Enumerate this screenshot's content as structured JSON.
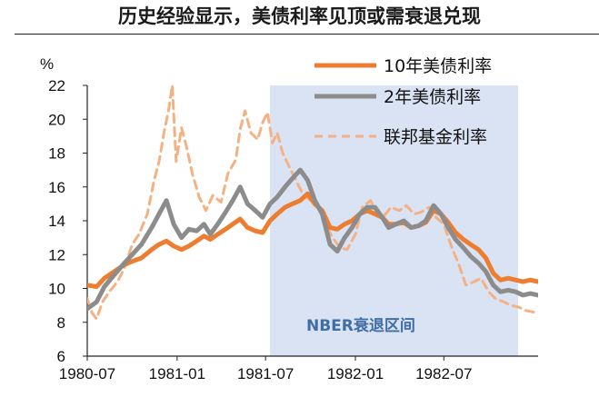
{
  "title": "历史经验显示，美债利率见顶或需衰退兑现",
  "colors": {
    "ten_year": "#ed7d31",
    "two_year": "#8c8c8c",
    "fed_funds": "#f4b183",
    "recession_shade": "#dae3f3",
    "nber_label": "#3f6ea6"
  },
  "chart_data": {
    "type": "line",
    "ylabel": "%",
    "ylim": [
      6,
      22
    ],
    "yticks": [
      6,
      8,
      10,
      12,
      14,
      16,
      18,
      20,
      22
    ],
    "xlim": [
      "1980-07-01",
      "1983-01-10"
    ],
    "xticks": [
      {
        "date": "1980-07-01",
        "label": "1980-07"
      },
      {
        "date": "1981-01-01",
        "label": "1981-01"
      },
      {
        "date": "1981-07-01",
        "label": "1981-07"
      },
      {
        "date": "1982-01-01",
        "label": "1982-01"
      },
      {
        "date": "1982-07-01",
        "label": "1982-07"
      }
    ],
    "legend_position": "top-right",
    "shaded_regions": [
      {
        "label": "NBER衰退区间",
        "start": "1981-07-10",
        "end": "1982-11-30"
      }
    ],
    "series": [
      {
        "name": "10年美债利率",
        "style": "solid-thick",
        "points": [
          [
            "1980-07-01",
            10.2
          ],
          [
            "1980-07-20",
            10.1
          ],
          [
            "1980-08-05",
            10.6
          ],
          [
            "1980-08-25",
            11.0
          ],
          [
            "1980-09-15",
            11.4
          ],
          [
            "1980-10-01",
            11.6
          ],
          [
            "1980-10-20",
            11.8
          ],
          [
            "1980-11-10",
            12.3
          ],
          [
            "1980-11-25",
            12.6
          ],
          [
            "1980-12-10",
            12.8
          ],
          [
            "1980-12-25",
            12.5
          ],
          [
            "1981-01-10",
            12.3
          ],
          [
            "1981-01-25",
            12.5
          ],
          [
            "1981-02-10",
            12.8
          ],
          [
            "1981-02-25",
            13.1
          ],
          [
            "1981-03-10",
            12.9
          ],
          [
            "1981-03-25",
            13.2
          ],
          [
            "1981-04-10",
            13.5
          ],
          [
            "1981-04-25",
            13.8
          ],
          [
            "1981-05-10",
            14.1
          ],
          [
            "1981-05-25",
            13.6
          ],
          [
            "1981-06-10",
            13.4
          ],
          [
            "1981-06-25",
            13.3
          ],
          [
            "1981-07-10",
            14.0
          ],
          [
            "1981-07-25",
            14.4
          ],
          [
            "1981-08-10",
            14.8
          ],
          [
            "1981-08-25",
            15.0
          ],
          [
            "1981-09-10",
            15.2
          ],
          [
            "1981-09-25",
            15.6
          ],
          [
            "1981-10-10",
            15.0
          ],
          [
            "1981-10-25",
            14.6
          ],
          [
            "1981-11-10",
            13.6
          ],
          [
            "1981-11-25",
            13.5
          ],
          [
            "1981-12-10",
            13.8
          ],
          [
            "1981-12-25",
            14.0
          ],
          [
            "1982-01-10",
            14.4
          ],
          [
            "1982-01-25",
            14.6
          ],
          [
            "1982-02-10",
            14.4
          ],
          [
            "1982-02-25",
            14.2
          ],
          [
            "1982-03-10",
            13.8
          ],
          [
            "1982-03-25",
            13.8
          ],
          [
            "1982-04-10",
            13.9
          ],
          [
            "1982-04-25",
            13.6
          ],
          [
            "1982-05-10",
            13.7
          ],
          [
            "1982-05-25",
            13.9
          ],
          [
            "1982-06-10",
            14.6
          ],
          [
            "1982-06-25",
            14.4
          ],
          [
            "1982-07-10",
            13.9
          ],
          [
            "1982-07-25",
            13.3
          ],
          [
            "1982-08-10",
            12.9
          ],
          [
            "1982-08-25",
            12.6
          ],
          [
            "1982-09-10",
            12.3
          ],
          [
            "1982-09-25",
            11.8
          ],
          [
            "1982-10-10",
            10.9
          ],
          [
            "1982-10-25",
            10.5
          ],
          [
            "1982-11-10",
            10.6
          ],
          [
            "1982-11-25",
            10.5
          ],
          [
            "1982-12-10",
            10.4
          ],
          [
            "1982-12-25",
            10.5
          ],
          [
            "1983-01-10",
            10.4
          ]
        ]
      },
      {
        "name": "2年美债利率",
        "style": "solid-thick",
        "points": [
          [
            "1980-07-01",
            8.8
          ],
          [
            "1980-07-20",
            9.2
          ],
          [
            "1980-08-05",
            10.1
          ],
          [
            "1980-08-25",
            10.8
          ],
          [
            "1980-09-15",
            11.5
          ],
          [
            "1980-10-01",
            12.0
          ],
          [
            "1980-10-20",
            12.6
          ],
          [
            "1980-11-10",
            13.6
          ],
          [
            "1980-11-25",
            14.4
          ],
          [
            "1980-12-10",
            15.2
          ],
          [
            "1980-12-25",
            13.8
          ],
          [
            "1981-01-10",
            13.0
          ],
          [
            "1981-01-25",
            13.5
          ],
          [
            "1981-02-10",
            13.4
          ],
          [
            "1981-02-25",
            13.8
          ],
          [
            "1981-03-10",
            13.2
          ],
          [
            "1981-03-25",
            13.8
          ],
          [
            "1981-04-10",
            14.5
          ],
          [
            "1981-04-25",
            15.2
          ],
          [
            "1981-05-10",
            16.0
          ],
          [
            "1981-05-25",
            15.0
          ],
          [
            "1981-06-10",
            14.6
          ],
          [
            "1981-06-25",
            14.2
          ],
          [
            "1981-07-10",
            15.0
          ],
          [
            "1981-07-25",
            15.4
          ],
          [
            "1981-08-10",
            16.0
          ],
          [
            "1981-08-25",
            16.5
          ],
          [
            "1981-09-10",
            17.0
          ],
          [
            "1981-09-25",
            16.4
          ],
          [
            "1981-10-10",
            15.2
          ],
          [
            "1981-10-25",
            14.4
          ],
          [
            "1981-11-10",
            12.6
          ],
          [
            "1981-11-25",
            12.2
          ],
          [
            "1981-12-10",
            13.0
          ],
          [
            "1981-12-25",
            13.6
          ],
          [
            "1982-01-10",
            14.4
          ],
          [
            "1982-01-25",
            14.8
          ],
          [
            "1982-02-10",
            14.8
          ],
          [
            "1982-02-25",
            14.2
          ],
          [
            "1982-03-10",
            13.6
          ],
          [
            "1982-03-25",
            13.8
          ],
          [
            "1982-04-10",
            14.0
          ],
          [
            "1982-04-25",
            13.6
          ],
          [
            "1982-05-10",
            13.7
          ],
          [
            "1982-05-25",
            14.0
          ],
          [
            "1982-06-10",
            14.9
          ],
          [
            "1982-06-25",
            14.4
          ],
          [
            "1982-07-10",
            13.6
          ],
          [
            "1982-07-25",
            12.9
          ],
          [
            "1982-08-10",
            12.4
          ],
          [
            "1982-08-25",
            11.9
          ],
          [
            "1982-09-10",
            11.5
          ],
          [
            "1982-09-25",
            11.0
          ],
          [
            "1982-10-10",
            10.2
          ],
          [
            "1982-10-25",
            9.8
          ],
          [
            "1982-11-10",
            9.9
          ],
          [
            "1982-11-25",
            9.8
          ],
          [
            "1982-12-10",
            9.6
          ],
          [
            "1982-12-25",
            9.7
          ],
          [
            "1983-01-10",
            9.6
          ]
        ]
      },
      {
        "name": "联邦基金利率",
        "style": "dashed",
        "points": [
          [
            "1980-07-01",
            9.4
          ],
          [
            "1980-07-10",
            8.6
          ],
          [
            "1980-07-20",
            8.2
          ],
          [
            "1980-08-01",
            9.2
          ],
          [
            "1980-08-15",
            9.8
          ],
          [
            "1980-09-01",
            10.4
          ],
          [
            "1980-09-15",
            11.2
          ],
          [
            "1980-10-01",
            12.6
          ],
          [
            "1980-10-15",
            13.2
          ],
          [
            "1980-11-01",
            14.4
          ],
          [
            "1980-11-15",
            16.4
          ],
          [
            "1980-11-25",
            17.5
          ],
          [
            "1980-12-05",
            19.2
          ],
          [
            "1980-12-15",
            20.6
          ],
          [
            "1980-12-22",
            22.0
          ],
          [
            "1980-12-30",
            17.5
          ],
          [
            "1981-01-10",
            19.5
          ],
          [
            "1981-01-20",
            18.4
          ],
          [
            "1981-02-01",
            16.8
          ],
          [
            "1981-02-15",
            15.4
          ],
          [
            "1981-03-01",
            14.6
          ],
          [
            "1981-03-15",
            15.5
          ],
          [
            "1981-04-01",
            15.1
          ],
          [
            "1981-04-15",
            16.8
          ],
          [
            "1981-05-01",
            17.6
          ],
          [
            "1981-05-10",
            19.4
          ],
          [
            "1981-05-20",
            20.5
          ],
          [
            "1981-06-01",
            19.2
          ],
          [
            "1981-06-15",
            18.8
          ],
          [
            "1981-06-25",
            19.8
          ],
          [
            "1981-07-05",
            20.4
          ],
          [
            "1981-07-15",
            18.6
          ],
          [
            "1981-07-25",
            19.2
          ],
          [
            "1981-08-05",
            18.0
          ],
          [
            "1981-08-15",
            17.4
          ],
          [
            "1981-09-01",
            16.4
          ],
          [
            "1981-09-15",
            15.6
          ],
          [
            "1981-10-01",
            15.2
          ],
          [
            "1981-10-15",
            14.9
          ],
          [
            "1981-11-01",
            13.8
          ],
          [
            "1981-11-15",
            13.0
          ],
          [
            "1981-12-01",
            12.4
          ],
          [
            "1981-12-15",
            12.3
          ],
          [
            "1982-01-01",
            13.2
          ],
          [
            "1982-01-15",
            14.8
          ],
          [
            "1982-02-01",
            15.2
          ],
          [
            "1982-02-15",
            14.4
          ],
          [
            "1982-03-01",
            14.3
          ],
          [
            "1982-03-15",
            14.8
          ],
          [
            "1982-04-01",
            14.6
          ],
          [
            "1982-04-15",
            14.9
          ],
          [
            "1982-05-01",
            14.4
          ],
          [
            "1982-05-15",
            14.5
          ],
          [
            "1982-06-01",
            14.8
          ],
          [
            "1982-06-15",
            14.2
          ],
          [
            "1982-07-01",
            13.8
          ],
          [
            "1982-07-15",
            12.6
          ],
          [
            "1982-08-01",
            11.4
          ],
          [
            "1982-08-15",
            10.2
          ],
          [
            "1982-09-01",
            10.4
          ],
          [
            "1982-09-15",
            10.6
          ],
          [
            "1982-10-01",
            9.8
          ],
          [
            "1982-10-15",
            9.4
          ],
          [
            "1982-11-01",
            9.2
          ],
          [
            "1982-11-15",
            9.0
          ],
          [
            "1982-12-01",
            8.9
          ],
          [
            "1982-12-15",
            8.7
          ],
          [
            "1983-01-01",
            8.6
          ],
          [
            "1983-01-10",
            8.6
          ]
        ]
      }
    ]
  }
}
